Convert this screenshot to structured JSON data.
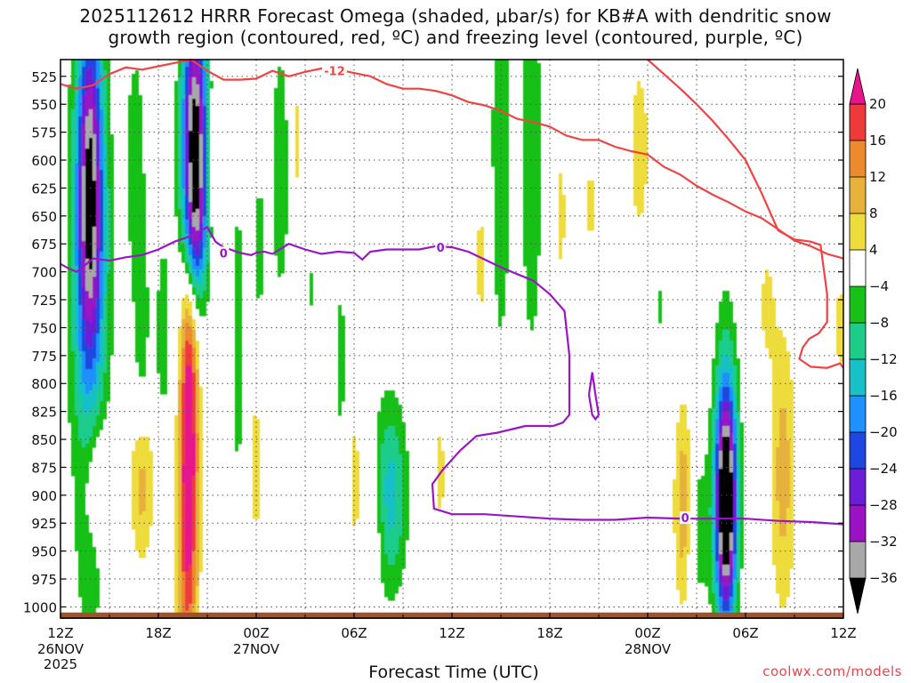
{
  "title": {
    "line1": "2025112612 HRRR Forecast Omega (shaded, μbar/s) for KB#A with dendritic snow",
    "line2": "growth region (contoured, red, ºC) and freezing level (contoured, purple, ºC)"
  },
  "x_axis_label": "Forecast Time (UTC)",
  "credit": "coolwx.com/models",
  "colors": {
    "dgz_contour": "#ee4444",
    "freezing_contour": "#9a15c8",
    "terrain": "#a0522d"
  },
  "colorbar": {
    "labels": [
      "20",
      "16",
      "12",
      "8",
      "4",
      "−4",
      "−8",
      "−12",
      "−16",
      "−20",
      "−24",
      "−28",
      "−32",
      "−36"
    ],
    "bins": [
      {
        "min": 20,
        "color": "#e8148c"
      },
      {
        "min": 16,
        "max": 20,
        "color": "#ee3a3a"
      },
      {
        "min": 12,
        "max": 16,
        "color": "#ee8a2e"
      },
      {
        "min": 8,
        "max": 12,
        "color": "#e6b23c"
      },
      {
        "min": 4,
        "max": 8,
        "color": "#eedc3c"
      },
      {
        "min": -4,
        "max": 4,
        "color": "#ffffff"
      },
      {
        "min": -8,
        "max": -4,
        "color": "#18c018"
      },
      {
        "min": -12,
        "max": -8,
        "color": "#1ecc8a"
      },
      {
        "min": -16,
        "max": -12,
        "color": "#18c0c8"
      },
      {
        "min": -20,
        "max": -16,
        "color": "#1e90ff"
      },
      {
        "min": -24,
        "max": -20,
        "color": "#1e46e0"
      },
      {
        "min": -28,
        "max": -24,
        "color": "#6a1ed6"
      },
      {
        "min": -32,
        "max": -28,
        "color": "#9a12c4"
      },
      {
        "min": -36,
        "max": -32,
        "color": "#a8a8a8"
      },
      {
        "max": -36,
        "color": "#000000"
      }
    ]
  },
  "chart_data": {
    "type": "heatmap",
    "title": "2025112612 HRRR Forecast Omega (shaded, μbar/s) for KB#A",
    "xlabel": "Forecast Time (UTC)",
    "ylabel": "",
    "x_unit": "hours after 2025-11-26 12Z",
    "x_range": [
      0,
      48
    ],
    "y_range": [
      1010,
      510
    ],
    "x_ticks": [
      {
        "x": 0,
        "label": "12Z",
        "sub": [
          "26NOV",
          "2025"
        ]
      },
      {
        "x": 6,
        "label": "18Z"
      },
      {
        "x": 12,
        "label": "00Z",
        "sub": [
          "27NOV"
        ]
      },
      {
        "x": 18,
        "label": "06Z"
      },
      {
        "x": 24,
        "label": "12Z"
      },
      {
        "x": 30,
        "label": "18Z"
      },
      {
        "x": 36,
        "label": "00Z",
        "sub": [
          "28NOV"
        ]
      },
      {
        "x": 42,
        "label": "06Z"
      },
      {
        "x": 48,
        "label": "12Z"
      }
    ],
    "y_ticks": [
      525,
      550,
      575,
      600,
      625,
      650,
      675,
      700,
      725,
      750,
      775,
      800,
      825,
      850,
      875,
      900,
      925,
      950,
      975,
      1000
    ],
    "omega_cells": [
      {
        "x": 1.8,
        "p": 625,
        "sx": 0.55,
        "sp": 110,
        "v": -30
      },
      {
        "x": 1.8,
        "p": 720,
        "sx": 0.9,
        "sp": 170,
        "v": -12
      },
      {
        "x": 2.2,
        "p": 900,
        "sx": 0.55,
        "sp": 55,
        "v": 10
      },
      {
        "x": 2.0,
        "p": 960,
        "sx": 0.6,
        "sp": 40,
        "v": -6
      },
      {
        "x": 4.6,
        "p": 600,
        "sx": 0.5,
        "sp": 90,
        "v": -6
      },
      {
        "x": 5.0,
        "p": 890,
        "sx": 0.5,
        "sp": 50,
        "v": 10
      },
      {
        "x": 5.0,
        "p": 760,
        "sx": 0.35,
        "sp": 70,
        "v": -6
      },
      {
        "x": 6.3,
        "p": 770,
        "sx": 0.35,
        "sp": 80,
        "v": -7
      },
      {
        "x": 6.3,
        "p": 870,
        "sx": 0.35,
        "sp": 40,
        "v": 6
      },
      {
        "x": 8.2,
        "p": 590,
        "sx": 0.55,
        "sp": 85,
        "v": -44
      },
      {
        "x": 8.2,
        "p": 670,
        "sx": 0.5,
        "sp": 40,
        "v": -9
      },
      {
        "x": 7.8,
        "p": 850,
        "sx": 0.45,
        "sp": 140,
        "v": 30
      },
      {
        "x": 7.4,
        "p": 790,
        "sx": 0.35,
        "sp": 100,
        "v": -7
      },
      {
        "x": 9.5,
        "p": 600,
        "sx": 0.3,
        "sp": 45,
        "v": 5
      },
      {
        "x": 10.9,
        "p": 760,
        "sx": 0.3,
        "sp": 120,
        "v": -6
      },
      {
        "x": 12.0,
        "p": 875,
        "sx": 0.35,
        "sp": 55,
        "v": 6
      },
      {
        "x": 12.2,
        "p": 680,
        "sx": 0.25,
        "sp": 55,
        "v": -6
      },
      {
        "x": 13.5,
        "p": 610,
        "sx": 0.45,
        "sp": 90,
        "v": -7
      },
      {
        "x": 14.5,
        "p": 585,
        "sx": 0.3,
        "sp": 70,
        "v": 5
      },
      {
        "x": 15.4,
        "p": 715,
        "sx": 0.15,
        "sp": 15,
        "v": -6
      },
      {
        "x": 17.2,
        "p": 780,
        "sx": 0.25,
        "sp": 60,
        "v": -6
      },
      {
        "x": 18.1,
        "p": 890,
        "sx": 0.35,
        "sp": 70,
        "v": 5
      },
      {
        "x": 20.2,
        "p": 900,
        "sx": 0.75,
        "sp": 60,
        "v": -14
      },
      {
        "x": 19.3,
        "p": 920,
        "sx": 0.4,
        "sp": 40,
        "v": 5
      },
      {
        "x": 23.3,
        "p": 880,
        "sx": 0.3,
        "sp": 50,
        "v": 5
      },
      {
        "x": 25.8,
        "p": 690,
        "sx": 0.35,
        "sp": 70,
        "v": 5
      },
      {
        "x": 27.0,
        "p": 600,
        "sx": 0.5,
        "sp": 140,
        "v": -7
      },
      {
        "x": 28.9,
        "p": 600,
        "sx": 0.5,
        "sp": 150,
        "v": -7
      },
      {
        "x": 29.0,
        "p": 900,
        "sx": 0.35,
        "sp": 60,
        "v": 5
      },
      {
        "x": 30.7,
        "p": 650,
        "sx": 0.3,
        "sp": 60,
        "v": 5
      },
      {
        "x": 32.5,
        "p": 640,
        "sx": 0.3,
        "sp": 40,
        "v": 5
      },
      {
        "x": 35.5,
        "p": 590,
        "sx": 0.7,
        "sp": 90,
        "v": 5
      },
      {
        "x": 36.8,
        "p": 730,
        "sx": 0.1,
        "sp": 20,
        "v": -6
      },
      {
        "x": 38.2,
        "p": 910,
        "sx": 0.4,
        "sp": 65,
        "v": 12
      },
      {
        "x": 39.1,
        "p": 930,
        "sx": 0.55,
        "sp": 60,
        "v": -6
      },
      {
        "x": 40.8,
        "p": 910,
        "sx": 0.45,
        "sp": 70,
        "v": -40
      },
      {
        "x": 40.8,
        "p": 870,
        "sx": 0.55,
        "sp": 100,
        "v": -10
      },
      {
        "x": 43.3,
        "p": 730,
        "sx": 0.4,
        "sp": 40,
        "v": 5
      },
      {
        "x": 44.3,
        "p": 880,
        "sx": 0.55,
        "sp": 90,
        "v": 10
      },
      {
        "x": 47.8,
        "p": 750,
        "sx": 0.3,
        "sp": 50,
        "v": 5
      }
    ],
    "dgz_contour": {
      "label": "-12",
      "points": [
        [
          0,
          532
        ],
        [
          1,
          536
        ],
        [
          2,
          533
        ],
        [
          3,
          523
        ],
        [
          4,
          517
        ],
        [
          5,
          519
        ],
        [
          6,
          516
        ],
        [
          7,
          513
        ],
        [
          8,
          510
        ],
        [
          9,
          520
        ],
        [
          10,
          528
        ],
        [
          11,
          528
        ],
        [
          12,
          527
        ],
        [
          13,
          520
        ],
        [
          14,
          525
        ],
        [
          15,
          521
        ],
        [
          16,
          518
        ],
        [
          17,
          519
        ],
        [
          18,
          522
        ],
        [
          19,
          525
        ],
        [
          20,
          532
        ],
        [
          21,
          536
        ],
        [
          22,
          536
        ],
        [
          23,
          538
        ],
        [
          24,
          542
        ],
        [
          25,
          548
        ],
        [
          26,
          551
        ],
        [
          27,
          556
        ],
        [
          28,
          563
        ],
        [
          29,
          566
        ],
        [
          30,
          570
        ],
        [
          31,
          578
        ],
        [
          32,
          582
        ],
        [
          33,
          582
        ],
        [
          34,
          588
        ],
        [
          35,
          592
        ],
        [
          36,
          595
        ],
        [
          37,
          606
        ],
        [
          38,
          613
        ],
        [
          39,
          623
        ],
        [
          40,
          631
        ],
        [
          41,
          638
        ],
        [
          42,
          646
        ],
        [
          43,
          652
        ],
        [
          44,
          662
        ],
        [
          45,
          672
        ],
        [
          46,
          677
        ],
        [
          47,
          684
        ],
        [
          48,
          688
        ]
      ],
      "points2": [
        [
          36,
          510
        ],
        [
          37,
          523
        ],
        [
          38,
          536
        ],
        [
          39,
          550
        ],
        [
          40,
          565
        ],
        [
          41,
          582
        ],
        [
          42,
          600
        ],
        [
          43,
          630
        ],
        [
          44,
          663
        ],
        [
          45,
          671
        ],
        [
          46,
          673
        ],
        [
          46.6,
          676
        ],
        [
          47.0,
          720
        ],
        [
          47.0,
          745
        ],
        [
          46.5,
          755
        ],
        [
          45.9,
          760
        ],
        [
          45.5,
          768
        ],
        [
          45.3,
          778
        ],
        [
          46.0,
          785
        ],
        [
          47.0,
          786
        ],
        [
          47.8,
          782
        ],
        [
          48,
          786
        ]
      ]
    },
    "freezing_contour": {
      "label": "0",
      "points": [
        [
          0,
          693
        ],
        [
          0.5,
          697
        ],
        [
          1,
          700
        ],
        [
          2,
          688
        ],
        [
          3,
          690
        ],
        [
          4,
          687
        ],
        [
          5,
          685
        ],
        [
          6,
          680
        ],
        [
          7,
          673
        ],
        [
          8,
          668
        ],
        [
          9,
          660
        ],
        [
          9.5,
          673
        ],
        [
          10,
          678
        ],
        [
          11,
          683
        ],
        [
          11.7,
          685
        ],
        [
          12,
          683
        ],
        [
          12.5,
          682
        ],
        [
          13,
          684
        ],
        [
          14,
          675
        ],
        [
          15,
          680
        ],
        [
          16,
          684
        ],
        [
          17,
          682
        ],
        [
          18,
          683
        ],
        [
          18.5,
          689
        ],
        [
          19,
          682
        ],
        [
          20,
          680
        ],
        [
          21,
          680
        ],
        [
          22,
          680
        ],
        [
          23,
          677
        ],
        [
          24,
          678
        ],
        [
          25,
          682
        ],
        [
          26,
          689
        ],
        [
          27,
          696
        ],
        [
          28,
          702
        ],
        [
          29,
          708
        ],
        [
          30,
          720
        ],
        [
          30.9,
          735
        ],
        [
          31.2,
          775
        ],
        [
          31.2,
          828
        ],
        [
          30.8,
          835
        ],
        [
          30.2,
          838
        ],
        [
          29.2,
          838
        ],
        [
          28.5,
          838
        ],
        [
          26.8,
          844
        ],
        [
          25.5,
          847
        ],
        [
          24.5,
          860
        ],
        [
          23.4,
          878
        ],
        [
          22.8,
          890
        ],
        [
          22.9,
          912
        ],
        [
          24,
          917
        ],
        [
          26,
          917
        ],
        [
          28,
          919
        ],
        [
          30,
          921
        ],
        [
          32,
          922
        ],
        [
          34,
          922
        ],
        [
          36,
          920
        ],
        [
          38,
          921
        ],
        [
          40,
          921
        ],
        [
          42,
          921
        ],
        [
          44,
          923
        ],
        [
          46,
          924
        ],
        [
          48,
          926
        ]
      ],
      "closed": [
        [
          32.4,
          810
        ],
        [
          32.6,
          828
        ],
        [
          32.8,
          832
        ],
        [
          33.0,
          828
        ],
        [
          32.8,
          810
        ],
        [
          32.6,
          790
        ],
        [
          32.4,
          810
        ]
      ]
    },
    "terrain_top_p": 1005
  }
}
